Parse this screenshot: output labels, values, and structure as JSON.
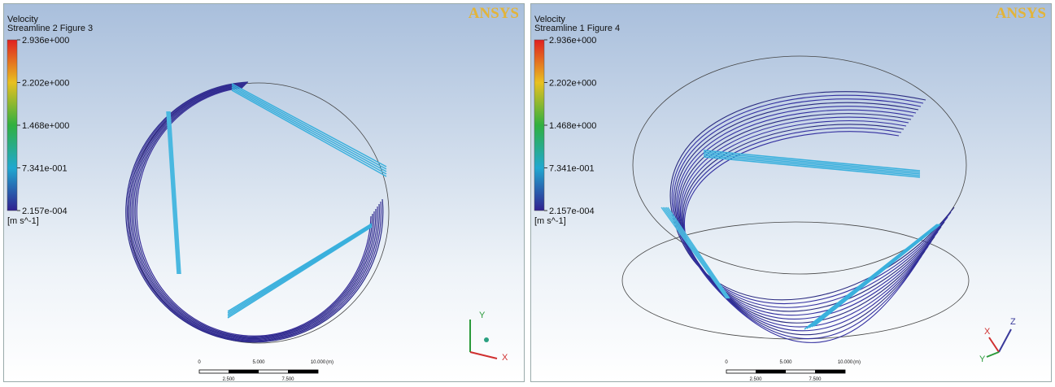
{
  "panels": [
    {
      "logo": "ANSYS",
      "title": "Velocity",
      "subtitle": "Streamline 2 Figure 3",
      "legend": [
        "2.936e+000",
        "2.202e+000",
        "1.468e+000",
        "7.341e-001",
        "2.157e-004"
      ],
      "unit": "[m s^-1]",
      "scale_top": [
        "0",
        "5.000",
        "10.000",
        "(m)"
      ],
      "scale_bottom": [
        "2.500",
        "7.500"
      ],
      "axes": [
        "Y",
        "X"
      ]
    },
    {
      "logo": "ANSYS",
      "title": "Velocity",
      "subtitle": "Streamline 1 Figure 4",
      "legend": [
        "2.936e+000",
        "2.202e+000",
        "1.468e+000",
        "7.341e-001",
        "2.157e-004"
      ],
      "unit": "[m s^-1]",
      "scale_top": [
        "0",
        "5.000",
        "10.000",
        "(m)"
      ],
      "scale_bottom": [
        "2.500",
        "7.500"
      ],
      "axes": [
        "Z",
        "X",
        "Y"
      ]
    }
  ]
}
